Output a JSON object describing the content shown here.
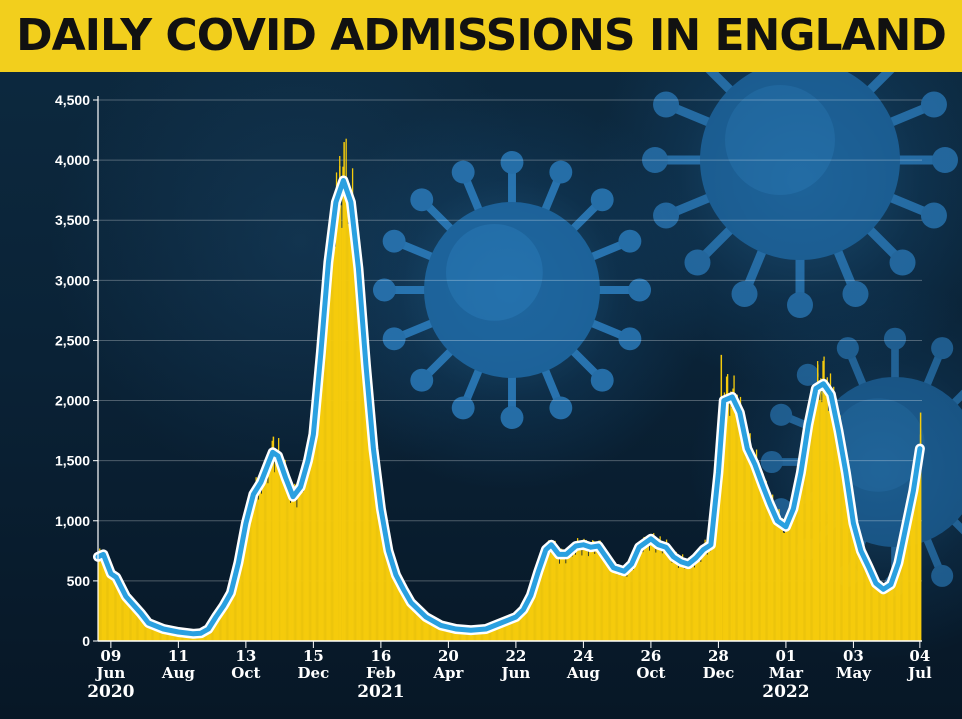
{
  "title": "DAILY COVID ADMISSIONS IN ENGLAND",
  "colors": {
    "title_bg": "#f2cf1d",
    "bars": "#f5cb0c",
    "line": "#2aa0e0",
    "line_halo": "#ffffff",
    "text": "#ffffff"
  },
  "chart_data": {
    "type": "bar",
    "title": "DAILY COVID ADMISSIONS IN ENGLAND",
    "xlabel": "",
    "ylabel": "",
    "ylim": [
      0,
      4500
    ],
    "yticks": [
      0,
      500,
      1000,
      1500,
      2000,
      2500,
      3000,
      3500,
      4000,
      4500
    ],
    "ytick_labels": [
      "0",
      "500",
      "1,000",
      "1,500",
      "2,000",
      "2,500",
      "3,000",
      "3,500",
      "4,000",
      "4,500"
    ],
    "xrange": [
      "2020-05-28",
      "2022-07-06"
    ],
    "grid": true,
    "xticks": [
      {
        "date": "2020-06-09",
        "day": "09",
        "month": "Jun"
      },
      {
        "date": "2020-08-11",
        "day": "11",
        "month": "Aug"
      },
      {
        "date": "2020-10-13",
        "day": "13",
        "month": "Oct"
      },
      {
        "date": "2020-12-15",
        "day": "15",
        "month": "Dec"
      },
      {
        "date": "2021-02-16",
        "day": "16",
        "month": "Feb"
      },
      {
        "date": "2021-04-20",
        "day": "20",
        "month": "Apr"
      },
      {
        "date": "2021-06-22",
        "day": "22",
        "month": "Jun"
      },
      {
        "date": "2021-08-24",
        "day": "24",
        "month": "Aug"
      },
      {
        "date": "2021-10-26",
        "day": "26",
        "month": "Oct"
      },
      {
        "date": "2021-12-28",
        "day": "28",
        "month": "Dec"
      },
      {
        "date": "2022-03-01",
        "day": "01",
        "month": "Mar"
      },
      {
        "date": "2022-05-03",
        "day": "03",
        "month": "May"
      },
      {
        "date": "2022-07-04",
        "day": "04",
        "month": "Jul"
      }
    ],
    "years": [
      {
        "label": "2020",
        "date": "2020-06-09"
      },
      {
        "label": "2021",
        "date": "2021-02-16"
      },
      {
        "label": "2022",
        "date": "2022-03-01"
      }
    ],
    "series": [
      {
        "kind": "line",
        "description": "7-day average admissions (blue line)",
        "points": [
          [
            "2020-05-28",
            700
          ],
          [
            "2020-06-02",
            720
          ],
          [
            "2020-06-09",
            560
          ],
          [
            "2020-06-14",
            530
          ],
          [
            "2020-06-23",
            370
          ],
          [
            "2020-07-07",
            230
          ],
          [
            "2020-07-14",
            150
          ],
          [
            "2020-07-28",
            100
          ],
          [
            "2020-08-11",
            75
          ],
          [
            "2020-08-25",
            60
          ],
          [
            "2020-09-01",
            65
          ],
          [
            "2020-09-08",
            100
          ],
          [
            "2020-09-15",
            200
          ],
          [
            "2020-09-22",
            290
          ],
          [
            "2020-09-29",
            400
          ],
          [
            "2020-10-06",
            650
          ],
          [
            "2020-10-13",
            980
          ],
          [
            "2020-10-20",
            1220
          ],
          [
            "2020-10-27",
            1320
          ],
          [
            "2020-11-03",
            1480
          ],
          [
            "2020-11-07",
            1570
          ],
          [
            "2020-11-12",
            1540
          ],
          [
            "2020-11-19",
            1360
          ],
          [
            "2020-11-26",
            1200
          ],
          [
            "2020-12-03",
            1280
          ],
          [
            "2020-12-10",
            1500
          ],
          [
            "2020-12-15",
            1720
          ],
          [
            "2020-12-22",
            2400
          ],
          [
            "2020-12-29",
            3150
          ],
          [
            "2021-01-05",
            3650
          ],
          [
            "2021-01-12",
            3830
          ],
          [
            "2021-01-19",
            3650
          ],
          [
            "2021-01-26",
            3100
          ],
          [
            "2021-02-02",
            2300
          ],
          [
            "2021-02-09",
            1600
          ],
          [
            "2021-02-16",
            1100
          ],
          [
            "2021-02-23",
            750
          ],
          [
            "2021-03-02",
            550
          ],
          [
            "2021-03-09",
            430
          ],
          [
            "2021-03-16",
            320
          ],
          [
            "2021-03-30",
            200
          ],
          [
            "2021-04-13",
            130
          ],
          [
            "2021-04-27",
            100
          ],
          [
            "2021-05-11",
            90
          ],
          [
            "2021-05-25",
            100
          ],
          [
            "2021-06-08",
            150
          ],
          [
            "2021-06-22",
            200
          ],
          [
            "2021-06-29",
            260
          ],
          [
            "2021-07-06",
            380
          ],
          [
            "2021-07-13",
            580
          ],
          [
            "2021-07-20",
            760
          ],
          [
            "2021-07-25",
            800
          ],
          [
            "2021-08-01",
            720
          ],
          [
            "2021-08-08",
            720
          ],
          [
            "2021-08-17",
            790
          ],
          [
            "2021-08-24",
            800
          ],
          [
            "2021-08-31",
            780
          ],
          [
            "2021-09-07",
            790
          ],
          [
            "2021-09-14",
            700
          ],
          [
            "2021-09-21",
            610
          ],
          [
            "2021-10-01",
            580
          ],
          [
            "2021-10-08",
            640
          ],
          [
            "2021-10-15",
            780
          ],
          [
            "2021-10-26",
            850
          ],
          [
            "2021-11-02",
            800
          ],
          [
            "2021-11-09",
            780
          ],
          [
            "2021-11-16",
            700
          ],
          [
            "2021-11-23",
            660
          ],
          [
            "2021-11-30",
            640
          ],
          [
            "2021-12-07",
            690
          ],
          [
            "2021-12-14",
            760
          ],
          [
            "2021-12-21",
            800
          ],
          [
            "2021-12-28",
            1400
          ],
          [
            "2022-01-02",
            2000
          ],
          [
            "2022-01-10",
            2030
          ],
          [
            "2022-01-17",
            1900
          ],
          [
            "2022-01-24",
            1600
          ],
          [
            "2022-01-31",
            1470
          ],
          [
            "2022-02-07",
            1300
          ],
          [
            "2022-02-14",
            1140
          ],
          [
            "2022-02-21",
            1000
          ],
          [
            "2022-03-01",
            950
          ],
          [
            "2022-03-08",
            1100
          ],
          [
            "2022-03-15",
            1400
          ],
          [
            "2022-03-22",
            1800
          ],
          [
            "2022-03-29",
            2100
          ],
          [
            "2022-04-05",
            2140
          ],
          [
            "2022-04-12",
            2050
          ],
          [
            "2022-04-19",
            1750
          ],
          [
            "2022-04-26",
            1400
          ],
          [
            "2022-05-03",
            980
          ],
          [
            "2022-05-10",
            750
          ],
          [
            "2022-05-17",
            620
          ],
          [
            "2022-05-24",
            480
          ],
          [
            "2022-05-31",
            430
          ],
          [
            "2022-06-07",
            470
          ],
          [
            "2022-06-14",
            650
          ],
          [
            "2022-06-21",
            950
          ],
          [
            "2022-06-28",
            1250
          ],
          [
            "2022-07-04",
            1600
          ]
        ]
      }
    ],
    "spikes": [
      [
        "2020-11-07",
        1700
      ],
      [
        "2020-11-14",
        1380
      ],
      [
        "2021-01-08",
        3950
      ],
      [
        "2021-01-12",
        4150
      ],
      [
        "2021-01-18",
        3500
      ],
      [
        "2021-12-30",
        2380
      ],
      [
        "2022-01-04",
        2200
      ],
      [
        "2022-01-10",
        2100
      ],
      [
        "2022-03-30",
        2300
      ],
      [
        "2022-04-04",
        2330
      ],
      [
        "2022-07-04",
        1900
      ]
    ]
  }
}
